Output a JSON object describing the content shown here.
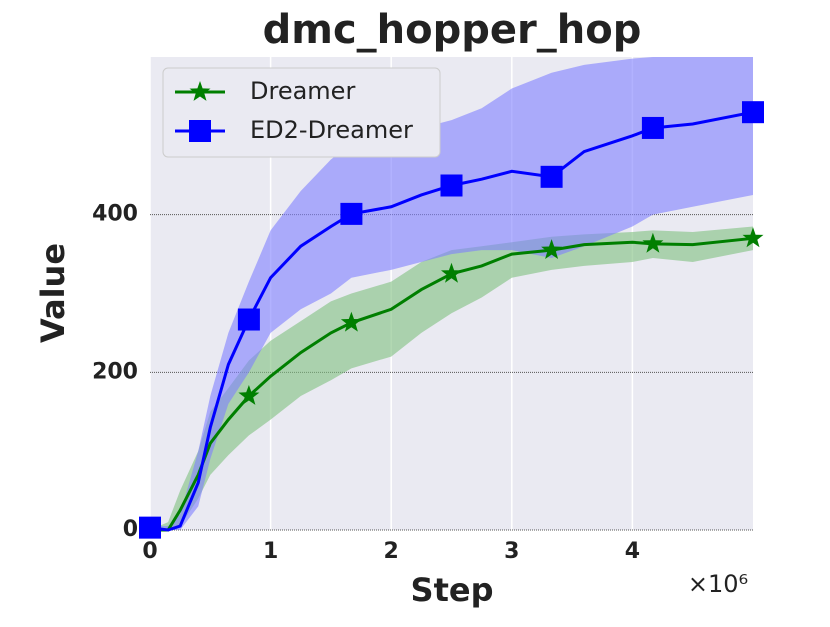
{
  "chart_data": {
    "type": "line",
    "title": "dmc_hopper_hop",
    "x_label": "Step",
    "y_label": "Value",
    "x_multiplier_label": "×10⁶",
    "x": [
      0,
      0.15,
      0.25,
      0.4,
      0.5,
      0.65,
      0.82,
      1.0,
      1.25,
      1.5,
      1.67,
      2.0,
      2.25,
      2.5,
      2.75,
      3.0,
      3.33,
      3.6,
      4.0,
      4.17,
      4.5,
      5.0
    ],
    "series": [
      {
        "name": "Dreamer",
        "color": "#007f00",
        "band_color": "#7fbf7f",
        "marker": "star",
        "values": [
          0,
          0,
          25,
          70,
          110,
          140,
          170,
          195,
          225,
          250,
          263,
          280,
          305,
          325,
          335,
          350,
          355,
          362,
          365,
          363,
          362,
          370
        ],
        "lower": [
          0,
          0,
          5,
          40,
          70,
          95,
          120,
          140,
          170,
          190,
          205,
          220,
          250,
          275,
          295,
          320,
          330,
          335,
          340,
          345,
          340,
          355
        ],
        "upper": [
          0,
          10,
          50,
          100,
          150,
          180,
          215,
          240,
          265,
          290,
          300,
          315,
          340,
          355,
          360,
          365,
          372,
          375,
          378,
          380,
          378,
          385
        ]
      },
      {
        "name": "ED2-Dreamer",
        "color": "#0000ff",
        "band_color": "#7f7fff",
        "marker": "square",
        "values": [
          3,
          0,
          5,
          60,
          130,
          210,
          267,
          320,
          360,
          385,
          401,
          410,
          425,
          437,
          445,
          455,
          448,
          480,
          500,
          510,
          515,
          530
        ],
        "lower": [
          0,
          0,
          0,
          30,
          90,
          160,
          200,
          250,
          280,
          300,
          320,
          330,
          340,
          350,
          355,
          355,
          345,
          360,
          385,
          400,
          410,
          425
        ],
        "upper": [
          5,
          5,
          20,
          100,
          170,
          250,
          315,
          380,
          430,
          470,
          490,
          500,
          510,
          520,
          535,
          560,
          580,
          590,
          598,
          600,
          600,
          600
        ]
      }
    ],
    "xlim": [
      0,
      5.0
    ],
    "ylim": [
      0,
      600
    ],
    "xticks": [
      0,
      1,
      2,
      3,
      4
    ],
    "yticks": [
      0,
      200,
      400
    ],
    "grid": true,
    "legend": "upper left"
  }
}
